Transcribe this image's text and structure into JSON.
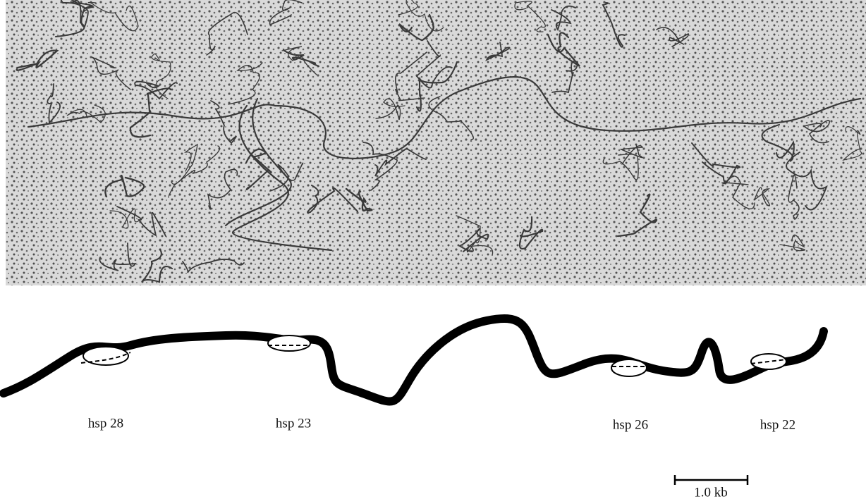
{
  "labels": [
    "hsp 28",
    "hsp 23",
    "hsp 26",
    "hsp 22"
  ],
  "scale_bar": {
    "label": "1.0 kb"
  }
}
